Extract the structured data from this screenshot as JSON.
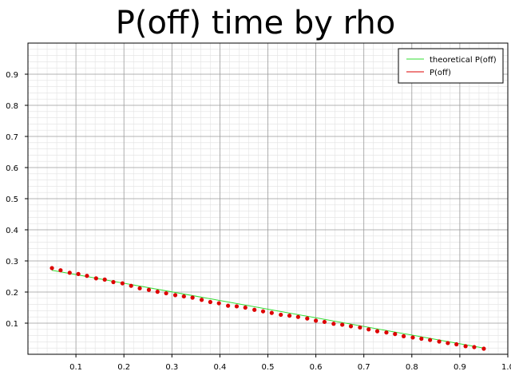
{
  "chart_data": {
    "type": "line",
    "title": "P(off) time by rho",
    "xlabel": "",
    "ylabel": "",
    "xlim": [
      0.0,
      1.0
    ],
    "ylim": [
      0.0,
      1.0
    ],
    "x_ticks": [
      "0.1",
      "0.2",
      "0.3",
      "0.4",
      "0.5",
      "0.6",
      "0.7",
      "0.8",
      "0.9",
      "1.0"
    ],
    "y_ticks": [
      "0.1",
      "0.2",
      "0.3",
      "0.4",
      "0.5",
      "0.6",
      "0.7",
      "0.8",
      "0.9"
    ],
    "grid": "major and minor",
    "legend_position": "top-right",
    "series": [
      {
        "name": "theoretical P(off)",
        "style": "line",
        "color": "#33dd33",
        "x": [
          0.05,
          0.95
        ],
        "y": [
          0.27,
          0.02
        ]
      },
      {
        "name": "P(off)",
        "style": "markers",
        "color": "#dd0000",
        "x": [
          0.05,
          0.068,
          0.087,
          0.105,
          0.123,
          0.142,
          0.16,
          0.178,
          0.197,
          0.215,
          0.233,
          0.252,
          0.27,
          0.288,
          0.307,
          0.325,
          0.343,
          0.362,
          0.38,
          0.398,
          0.417,
          0.435,
          0.453,
          0.472,
          0.49,
          0.508,
          0.527,
          0.545,
          0.563,
          0.582,
          0.6,
          0.618,
          0.637,
          0.655,
          0.673,
          0.692,
          0.71,
          0.728,
          0.747,
          0.765,
          0.783,
          0.802,
          0.82,
          0.838,
          0.857,
          0.875,
          0.893,
          0.912,
          0.93,
          0.95
        ],
        "y": [
          0.277,
          0.27,
          0.262,
          0.258,
          0.252,
          0.244,
          0.24,
          0.232,
          0.228,
          0.22,
          0.212,
          0.207,
          0.201,
          0.196,
          0.19,
          0.186,
          0.182,
          0.175,
          0.168,
          0.164,
          0.156,
          0.154,
          0.15,
          0.143,
          0.138,
          0.133,
          0.127,
          0.124,
          0.12,
          0.115,
          0.108,
          0.104,
          0.098,
          0.095,
          0.09,
          0.086,
          0.08,
          0.074,
          0.07,
          0.065,
          0.058,
          0.054,
          0.05,
          0.046,
          0.041,
          0.036,
          0.032,
          0.026,
          0.023,
          0.018
        ]
      }
    ]
  }
}
